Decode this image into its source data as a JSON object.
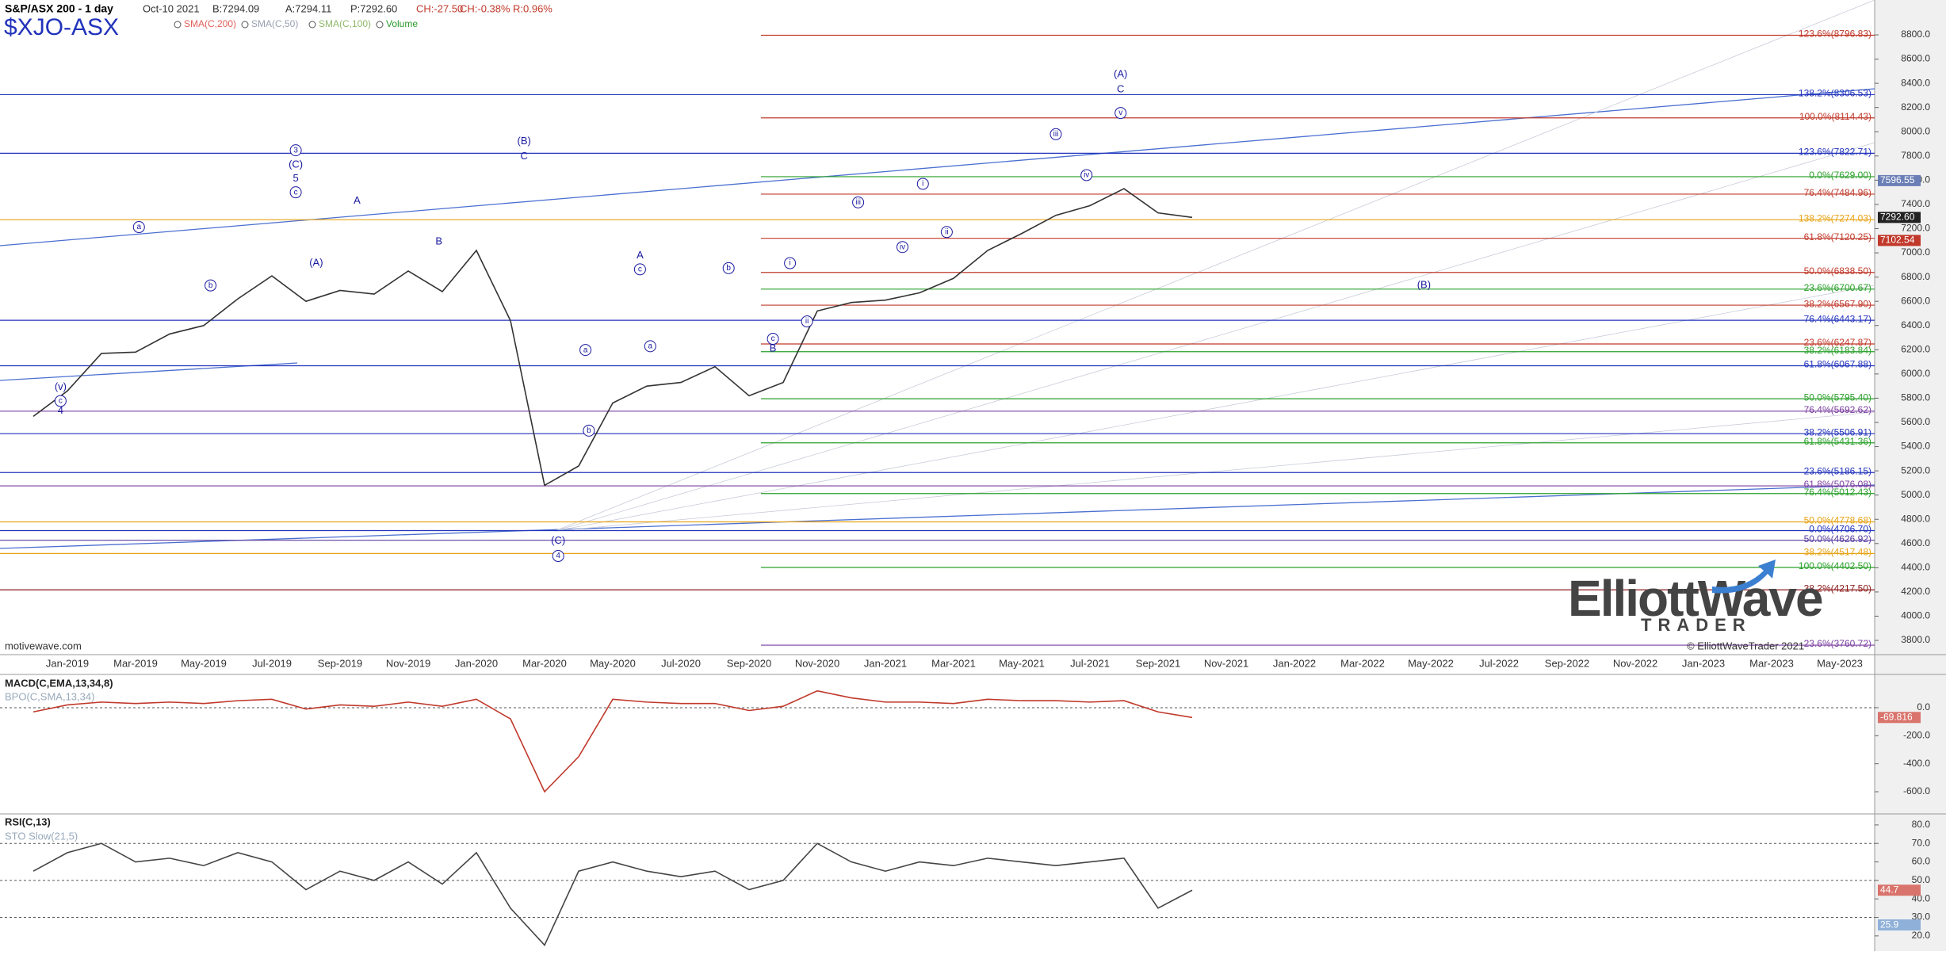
{
  "chart_data": [
    {
      "type": "line",
      "title": "S&P/ASX 200 - 1 day",
      "date": "Oct-10 2021",
      "quote": [
        "B:7294.09",
        "A:7294.11",
        "P:7292.60",
        "CH:-27.50",
        "CH:-0.38%",
        "R:0.96%"
      ],
      "symbol": "$XJO-ASX",
      "indicators": [
        {
          "name": "SMA(C,200)",
          "color": "#e0605a"
        },
        {
          "name": "SMA(C,50)",
          "color": "#9aa0b0"
        },
        {
          "name": "SMA(C,100)",
          "color": "#8fb86a"
        },
        {
          "name": "Volume",
          "color": "#2a9a2a"
        }
      ],
      "watermark": "motivewave.com",
      "copyright": "© ElliottWaveTrader 2021",
      "logo": [
        "ElliottWave",
        "TRADER"
      ],
      "categories": [
        null,
        "Jan-2019",
        null,
        "Mar-2019",
        null,
        "May-2019",
        null,
        "Jul-2019",
        null,
        "Sep-2019",
        null,
        "Nov-2019",
        null,
        "Jan-2020",
        null,
        "Mar-2020",
        null,
        "May-2020",
        null,
        "Jul-2020",
        null,
        "Sep-2020",
        null,
        "Nov-2020",
        null,
        "Jan-2021",
        null,
        "Mar-2021",
        null,
        "May-2021",
        null,
        "Jul-2021",
        null,
        "Sep-2021",
        null,
        "Nov-2021",
        null,
        "Jan-2022",
        null,
        "Mar-2022",
        null,
        "May-2022",
        null,
        "Jul-2022",
        null,
        "Sep-2022",
        null,
        "Nov-2022",
        null,
        "Jan-2023",
        null,
        "Mar-2023",
        null,
        "May-2023"
      ],
      "values": [
        5650,
        5860,
        6170,
        6180,
        6330,
        6400,
        6620,
        6810,
        6600,
        6690,
        6660,
        6850,
        6680,
        7020,
        6440,
        5080,
        5240,
        5760,
        5900,
        5930,
        6060,
        5820,
        5930,
        6520,
        6590,
        6610,
        6670,
        6790,
        7020,
        7160,
        7310,
        7390,
        7530,
        7330,
        7292.6,
        null,
        null,
        null,
        null,
        null,
        null,
        null,
        null,
        null,
        null,
        null,
        null,
        null,
        null,
        null,
        null,
        null,
        null,
        null
      ],
      "color": "#333333",
      "ylim": [
        3689,
        9088
      ],
      "yticks": [
        {
          "value": 3800,
          "label": "3800.0"
        },
        {
          "value": 4000,
          "label": "4000.0"
        },
        {
          "value": 4200,
          "label": "4200.0"
        },
        {
          "value": 4400,
          "label": "4400.0"
        },
        {
          "value": 4600,
          "label": "4600.0"
        },
        {
          "value": 4800,
          "label": "4800.0"
        },
        {
          "value": 5000,
          "label": "5000.0"
        },
        {
          "value": 5200,
          "label": "5200.0"
        },
        {
          "value": 5400,
          "label": "5400.0"
        },
        {
          "value": 5600,
          "label": "5600.0"
        },
        {
          "value": 5800,
          "label": "5800.0"
        },
        {
          "value": 6000,
          "label": "6000.0"
        },
        {
          "value": 6200,
          "label": "6200.0"
        },
        {
          "value": 6400,
          "label": "6400.0"
        },
        {
          "value": 6600,
          "label": "6600.0"
        },
        {
          "value": 6800,
          "label": "6800.0"
        },
        {
          "value": 7000,
          "label": "7000.0"
        },
        {
          "value": 7200,
          "label": "7200.0"
        },
        {
          "value": 7400,
          "label": "7400.0"
        },
        {
          "value": 7600,
          "label": "7600.0"
        },
        {
          "value": 7800,
          "label": "7800.0"
        },
        {
          "value": 8000,
          "label": "8000.0"
        },
        {
          "value": 8200,
          "label": "8200.0"
        },
        {
          "value": 8400,
          "label": "8400.0"
        },
        {
          "value": 8600,
          "label": "8600.0"
        },
        {
          "value": 8800,
          "label": "8800.0"
        }
      ],
      "fib_levels": [
        {
          "label": "123.6%(8796.83)",
          "value": 8796.83,
          "color": "#c0392b",
          "full": false
        },
        {
          "label": "138.2%(8306.53)",
          "value": 8306.53,
          "color": "#2233bb",
          "full": true
        },
        {
          "label": "100.0%(8114.43)",
          "value": 8114.43,
          "color": "#c0392b",
          "full": false
        },
        {
          "label": "123.6%(7822.71)",
          "value": 7822.71,
          "color": "#2233bb",
          "full": true
        },
        {
          "label": "0.0%(7629.00)",
          "value": 7629.0,
          "color": "#2aa02a",
          "full": false
        },
        {
          "label": "76.4%(7484.96)",
          "value": 7484.96,
          "color": "#c0392b",
          "full": false
        },
        {
          "label": "138.2%(7274.03)",
          "value": 7274.03,
          "color": "#e8a317",
          "full": true
        },
        {
          "label": "61.8%(7120.25)",
          "value": 7120.25,
          "color": "#c0392b",
          "full": false
        },
        {
          "label": "50.0%(6838.50)",
          "value": 6838.5,
          "color": "#c0392b",
          "full": false
        },
        {
          "label": "23.6%(6700.67)",
          "value": 6700.67,
          "color": "#2aa02a",
          "full": false
        },
        {
          "label": "38.2%(6567.90)",
          "value": 6567.9,
          "color": "#c0392b",
          "full": false
        },
        {
          "label": "76.4%(6443.17)",
          "value": 6443.17,
          "color": "#2233bb",
          "full": true
        },
        {
          "label": "23.6%(6247.87)",
          "value": 6247.87,
          "color": "#c0392b",
          "full": false
        },
        {
          "label": "38.2%(6183.84)",
          "value": 6183.84,
          "color": "#2aa02a",
          "full": false
        },
        {
          "label": "61.8%(6067.88)",
          "value": 6067.88,
          "color": "#2233bb",
          "full": true
        },
        {
          "label": "50.0%(5795.40)",
          "value": 5795.4,
          "color": "#2aa02a",
          "full": false
        },
        {
          "label": "76.4%(5692.62)",
          "value": 5692.62,
          "color": "#7b3fa0",
          "full": true
        },
        {
          "label": "38.2%(5506.91)",
          "value": 5506.91,
          "color": "#2233bb",
          "full": true
        },
        {
          "label": "61.8%(5431.36)",
          "value": 5431.36,
          "color": "#2aa02a",
          "full": false
        },
        {
          "label": "23.6%(5186.15)",
          "value": 5186.15,
          "color": "#2233bb",
          "full": true
        },
        {
          "label": "61.8%(5076.08)",
          "value": 5076.08,
          "color": "#7b3fa0",
          "full": true
        },
        {
          "label": "76.4%(5012.43)",
          "value": 5012.43,
          "color": "#2aa02a",
          "full": false
        },
        {
          "label": "50.0%(4778.68)",
          "value": 4778.68,
          "color": "#e8a317",
          "full": true
        },
        {
          "label": "0.0%(4706.70)",
          "value": 4706.7,
          "color": "#2233bb",
          "full": true
        },
        {
          "label": "50.0%(4626.92)",
          "value": 4626.92,
          "color": "#5a3fa0",
          "full": true
        },
        {
          "label": "38.2%(4517.48)",
          "value": 4517.48,
          "color": "#e8a317",
          "full": true
        },
        {
          "label": "100.0%(4402.50)",
          "value": 4402.5,
          "color": "#2aa02a",
          "full": false
        },
        {
          "label": "38.2%(4217.50)",
          "value": 4217.5,
          "color": "#8b1a1a",
          "full": true
        },
        {
          "label": "23.6%(3760.72)",
          "value": 3760.72,
          "color": "#7b3fa0",
          "full": false
        }
      ],
      "price_markers": [
        {
          "value": 7596.55,
          "label": "7596.55",
          "color": "#6a7fb5"
        },
        {
          "value": 7292.6,
          "label": "7292.60",
          "color": "#222222"
        },
        {
          "value": 7102.54,
          "label": "7102.54",
          "color": "#c0392b"
        }
      ],
      "annotations": [
        {
          "text": "(A)",
          "x": 31.9,
          "y": 8472,
          "circle": false
        },
        {
          "text": "C",
          "x": 31.9,
          "y": 8349,
          "circle": false
        },
        {
          "text": "v",
          "x": 31.9,
          "y": 8155,
          "circle": true
        },
        {
          "text": "iii",
          "x": 30.0,
          "y": 7980,
          "circle": true
        },
        {
          "text": "iv",
          "x": 30.9,
          "y": 7642,
          "circle": true
        },
        {
          "text": "i",
          "x": 26.1,
          "y": 7570,
          "circle": true
        },
        {
          "text": "iii",
          "x": 24.2,
          "y": 7417,
          "circle": true
        },
        {
          "text": "iv",
          "x": 25.5,
          "y": 7048,
          "circle": true
        },
        {
          "text": "ii",
          "x": 26.8,
          "y": 7172,
          "circle": true
        },
        {
          "text": "(B)",
          "x": 14.4,
          "y": 7919,
          "circle": false
        },
        {
          "text": "C",
          "x": 14.4,
          "y": 7796,
          "circle": false
        },
        {
          "text": "3",
          "x": 7.7,
          "y": 7847,
          "circle": true
        },
        {
          "text": "(C)",
          "x": 7.7,
          "y": 7725,
          "circle": false
        },
        {
          "text": "5",
          "x": 7.7,
          "y": 7611,
          "circle": false
        },
        {
          "text": "c",
          "x": 7.7,
          "y": 7500,
          "circle": true
        },
        {
          "text": "A",
          "x": 9.5,
          "y": 7430,
          "circle": false
        },
        {
          "text": "(A)",
          "x": 8.3,
          "y": 6915,
          "circle": false
        },
        {
          "text": "B",
          "x": 11.9,
          "y": 7090,
          "circle": false
        },
        {
          "text": "a",
          "x": 3.1,
          "y": 7213,
          "circle": true
        },
        {
          "text": "b",
          "x": 5.2,
          "y": 6731,
          "circle": true
        },
        {
          "text": "(v)",
          "x": 0.8,
          "y": 5890,
          "circle": false
        },
        {
          "text": "c",
          "x": 0.8,
          "y": 5777,
          "circle": true
        },
        {
          "text": "4",
          "x": 0.8,
          "y": 5695,
          "circle": false
        },
        {
          "text": "A",
          "x": 17.8,
          "y": 6976,
          "circle": false
        },
        {
          "text": "c",
          "x": 17.8,
          "y": 6864,
          "circle": true
        },
        {
          "text": "b",
          "x": 20.4,
          "y": 6874,
          "circle": true
        },
        {
          "text": "a",
          "x": 18.1,
          "y": 6229,
          "circle": true
        },
        {
          "text": "c",
          "x": 21.7,
          "y": 6290,
          "circle": true
        },
        {
          "text": "B",
          "x": 21.7,
          "y": 6208,
          "circle": false
        },
        {
          "text": "i",
          "x": 22.2,
          "y": 6915,
          "circle": true
        },
        {
          "text": "ii",
          "x": 22.7,
          "y": 6434,
          "circle": true
        },
        {
          "text": "a",
          "x": 16.2,
          "y": 6198,
          "circle": true
        },
        {
          "text": "b",
          "x": 16.3,
          "y": 5532,
          "circle": true
        },
        {
          "text": "(C)",
          "x": 15.4,
          "y": 4620,
          "circle": false
        },
        {
          "text": "4",
          "x": 15.4,
          "y": 4497,
          "circle": true
        },
        {
          "text": "(B)",
          "x": 40.8,
          "y": 6731,
          "circle": false
        }
      ]
    },
    {
      "type": "line",
      "title": "MACD(C,EMA,13,34,8)",
      "subtitle": "BPO(C,SMA,13,34)",
      "values": [
        -30,
        20,
        40,
        30,
        40,
        30,
        50,
        60,
        -10,
        20,
        10,
        40,
        10,
        60,
        -80,
        -600,
        -350,
        60,
        40,
        30,
        30,
        -20,
        10,
        120,
        70,
        40,
        40,
        30,
        60,
        50,
        50,
        40,
        50,
        -30,
        -69.816,
        null,
        null,
        null,
        null,
        null,
        null,
        null,
        null,
        null,
        null,
        null,
        null,
        null,
        null,
        null,
        null,
        null,
        null,
        null
      ],
      "color": "#c0392b",
      "ylim": [
        -747,
        226
      ],
      "yticks": [
        {
          "value": 0,
          "label": "0.0"
        },
        {
          "value": -200,
          "label": "-200.0"
        },
        {
          "value": -400,
          "label": "-400.0"
        },
        {
          "value": -600,
          "label": "-600.0"
        }
      ],
      "levels": [
        0
      ],
      "price_markers": [
        {
          "value": -69.816,
          "label": "-69.816",
          "color": "#d9746c"
        }
      ]
    },
    {
      "type": "line",
      "title": "RSI(C,13)",
      "subtitle": "STO Slow(21,5)",
      "values": [
        55,
        65,
        70,
        60,
        62,
        58,
        65,
        60,
        45,
        55,
        50,
        60,
        48,
        65,
        35,
        15,
        55,
        60,
        55,
        52,
        55,
        45,
        50,
        70,
        60,
        55,
        60,
        58,
        62,
        60,
        58,
        60,
        62,
        35,
        44.7,
        null,
        null,
        null,
        null,
        null,
        null,
        null,
        null,
        null,
        null,
        null,
        null,
        null,
        null,
        null,
        null,
        null,
        null,
        null
      ],
      "color": "#444444",
      "ylim": [
        11.8,
        85.1
      ],
      "yticks": [
        {
          "value": 20,
          "label": "20.0"
        },
        {
          "value": 30,
          "label": "30.0"
        },
        {
          "value": 40,
          "label": "40.0"
        },
        {
          "value": 50,
          "label": "50.0"
        },
        {
          "value": 60,
          "label": "60.0"
        },
        {
          "value": 70,
          "label": "70.0"
        },
        {
          "value": 80,
          "label": "80.0"
        }
      ],
      "levels": [
        70,
        50,
        30
      ],
      "price_markers": [
        {
          "value": 44.7,
          "label": "44.7",
          "color": "#d9746c"
        },
        {
          "value": 25.9,
          "label": "25.9",
          "color": "#8fb0d8"
        }
      ]
    }
  ]
}
